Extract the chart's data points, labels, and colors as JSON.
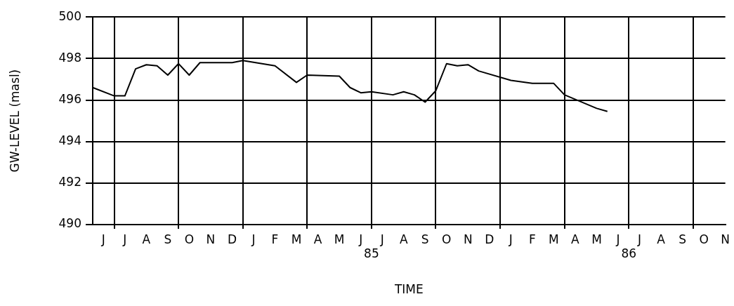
{
  "chart_data": {
    "type": "line",
    "xlabel": "TIME",
    "ylabel": "GW-LEVEL (masl)",
    "color": "#000000",
    "categories": [
      null,
      "J",
      null,
      "J",
      null,
      "A",
      null,
      "S",
      null,
      "O",
      null,
      "N",
      null,
      "D",
      null,
      "J",
      null,
      "F",
      null,
      "M",
      null,
      "A",
      null,
      "M",
      null,
      "J",
      "85",
      "J",
      null,
      "A",
      null,
      "S",
      null,
      "O",
      null,
      "N",
      null,
      "D",
      null,
      "J",
      null,
      "F",
      null,
      "M",
      null,
      "A",
      null,
      "M",
      null,
      "J",
      "86",
      "J",
      null,
      "A",
      null,
      "S",
      null,
      "O",
      null,
      "N"
    ],
    "values": [
      496.6,
      null,
      496.2,
      496.2,
      497.5,
      497.7,
      497.65,
      497.2,
      497.75,
      497.2,
      497.8,
      497.8,
      null,
      497.8,
      497.9,
      null,
      null,
      497.65,
      null,
      496.85,
      497.2,
      null,
      null,
      497.15,
      496.6,
      496.35,
      496.4,
      null,
      496.25,
      496.4,
      496.25,
      495.9,
      496.45,
      497.75,
      497.65,
      497.7,
      497.4,
      null,
      null,
      496.95,
      null,
      496.8,
      null,
      496.8,
      496.25,
      null,
      null,
      495.6,
      495.45,
      null,
      null,
      null,
      null,
      null,
      null,
      null,
      null,
      null,
      null,
      null
    ],
    "ylim": [
      490,
      500
    ],
    "yticks": [
      490,
      492,
      494,
      496,
      498,
      500
    ],
    "grid": true,
    "line_style": "solid",
    "marker": "none",
    "legend": false
  }
}
